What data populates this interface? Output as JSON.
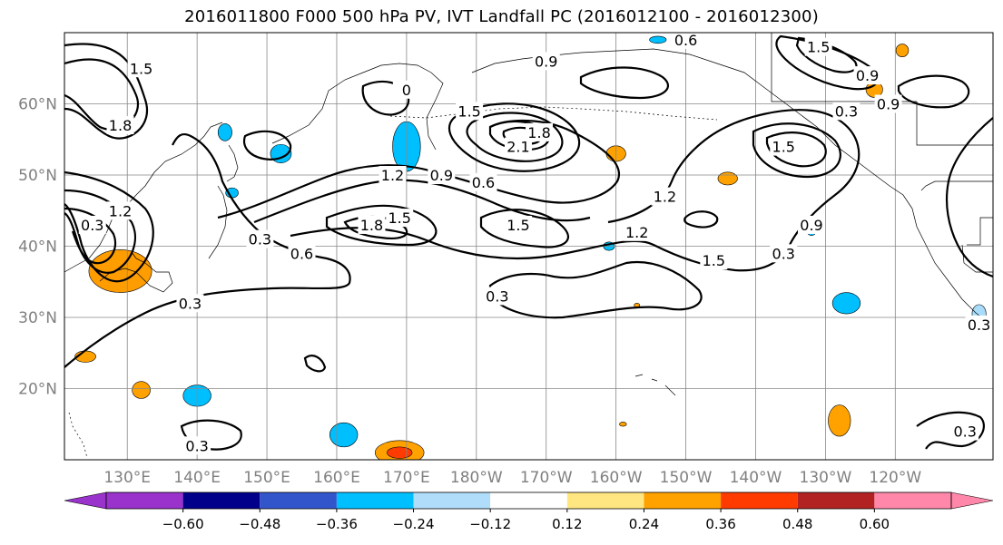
{
  "title": "2016011800 F000 500 hPa PV, IVT Landfall PC (2016012100 - 2016012300)",
  "map": {
    "lon_range": [
      121,
      254
    ],
    "lat_range": [
      10,
      70
    ],
    "lon_ticks": [
      "130°E",
      "140°E",
      "150°E",
      "160°E",
      "170°E",
      "180°W",
      "170°W",
      "160°W",
      "150°W",
      "140°W",
      "130°W",
      "120°W"
    ],
    "lat_ticks": [
      "20°N",
      "30°N",
      "40°N",
      "50°N",
      "60°N"
    ],
    "tick_label_color": "#808080",
    "grid": true,
    "contour_labels": [
      {
        "text": "1.5",
        "lon": 132,
        "lat": 65
      },
      {
        "text": "1.8",
        "lon": 129,
        "lat": 57
      },
      {
        "text": "1.2",
        "lon": 129,
        "lat": 45
      },
      {
        "text": "0.3",
        "lon": 125,
        "lat": 43
      },
      {
        "text": "0.3",
        "lon": 139,
        "lat": 32
      },
      {
        "text": "0.3",
        "lon": 149,
        "lat": 41
      },
      {
        "text": "0.6",
        "lon": 155,
        "lat": 39
      },
      {
        "text": "1.2",
        "lon": 168,
        "lat": 50
      },
      {
        "text": "0.9",
        "lon": 175,
        "lat": 50
      },
      {
        "text": "0.6",
        "lon": 181,
        "lat": 49
      },
      {
        "text": "1.8",
        "lon": 165,
        "lat": 43
      },
      {
        "text": "1.5",
        "lon": 169,
        "lat": 44
      },
      {
        "text": "1.5",
        "lon": 186,
        "lat": 43
      },
      {
        "text": "0",
        "lon": 170,
        "lat": 62
      },
      {
        "text": "1.5",
        "lon": 179,
        "lat": 59
      },
      {
        "text": "2.1",
        "lon": 186,
        "lat": 54
      },
      {
        "text": "1.8",
        "lon": 189,
        "lat": 56
      },
      {
        "text": "0.9",
        "lon": 190,
        "lat": 66
      },
      {
        "text": "0.6",
        "lon": 210,
        "lat": 69
      },
      {
        "text": "1.2",
        "lon": 207,
        "lat": 47
      },
      {
        "text": "1.2",
        "lon": 203,
        "lat": 42
      },
      {
        "text": "1.5",
        "lon": 214,
        "lat": 38
      },
      {
        "text": "1.5",
        "lon": 224,
        "lat": 54
      },
      {
        "text": "0.3",
        "lon": 224,
        "lat": 39
      },
      {
        "text": "0.9",
        "lon": 228,
        "lat": 43
      },
      {
        "text": "0.3",
        "lon": 233,
        "lat": 59
      },
      {
        "text": "0.9",
        "lon": 236,
        "lat": 64
      },
      {
        "text": "1.5",
        "lon": 229,
        "lat": 68
      },
      {
        "text": "0.9",
        "lon": 239,
        "lat": 60
      },
      {
        "text": "0.3",
        "lon": 183,
        "lat": 33
      },
      {
        "text": "0.3",
        "lon": 140,
        "lat": 12
      },
      {
        "text": "0.3",
        "lon": 250,
        "lat": 14
      },
      {
        "text": "0.3",
        "lon": 252,
        "lat": 29
      }
    ],
    "shaded_blobs": [
      {
        "lon": 129,
        "lat": 36,
        "rx": 3.5,
        "ry": 2,
        "color": "#ff3b00"
      },
      {
        "lon": 129,
        "lat": 36.5,
        "rx": 4.5,
        "ry": 3,
        "color": "#ff9d00"
      },
      {
        "lon": 132,
        "lat": 19.8,
        "rx": 1.3,
        "ry": 1.2,
        "color": "#ffa200"
      },
      {
        "lon": 124,
        "lat": 24.5,
        "rx": 1.5,
        "ry": 0.8,
        "color": "#ffa200"
      },
      {
        "lon": 140,
        "lat": 19,
        "rx": 2,
        "ry": 1.5,
        "color": "#00bfff"
      },
      {
        "lon": 161,
        "lat": 13.5,
        "rx": 2,
        "ry": 1.7,
        "color": "#00bfff"
      },
      {
        "lon": 169,
        "lat": 11,
        "rx": 3.5,
        "ry": 1.7,
        "color": "#ffa200"
      },
      {
        "lon": 169,
        "lat": 11,
        "rx": 1.8,
        "ry": 0.8,
        "color": "#ff3b00"
      },
      {
        "lon": 170,
        "lat": 54,
        "rx": 2,
        "ry": 3.5,
        "color": "#00bfff"
      },
      {
        "lon": 152,
        "lat": 53,
        "rx": 1.5,
        "ry": 1.3,
        "color": "#00bfff"
      },
      {
        "lon": 144,
        "lat": 56,
        "rx": 1,
        "ry": 1.2,
        "color": "#00bfff"
      },
      {
        "lon": 145,
        "lat": 47.5,
        "rx": 0.9,
        "ry": 0.7,
        "color": "#00bfff"
      },
      {
        "lon": 200,
        "lat": 53,
        "rx": 1.4,
        "ry": 1.1,
        "color": "#ffa200"
      },
      {
        "lon": 216,
        "lat": 49.5,
        "rx": 1.4,
        "ry": 0.9,
        "color": "#ffa200"
      },
      {
        "lon": 237,
        "lat": 62,
        "rx": 1.2,
        "ry": 1.1,
        "color": "#ffa200"
      },
      {
        "lon": 241,
        "lat": 67.5,
        "rx": 0.9,
        "ry": 0.9,
        "color": "#ffa200"
      },
      {
        "lon": 233,
        "lat": 32,
        "rx": 2,
        "ry": 1.5,
        "color": "#00bfff"
      },
      {
        "lon": 232,
        "lat": 15.5,
        "rx": 1.6,
        "ry": 2.2,
        "color": "#ffa200"
      },
      {
        "lon": 199,
        "lat": 40,
        "rx": 0.8,
        "ry": 0.6,
        "color": "#00bfff"
      },
      {
        "lon": 206,
        "lat": 69,
        "rx": 1.2,
        "ry": 0.5,
        "color": "#00bfff"
      },
      {
        "lon": 201,
        "lat": 15,
        "rx": 0.5,
        "ry": 0.3,
        "color": "#ffa200"
      },
      {
        "lon": 203,
        "lat": 31.7,
        "rx": 0.4,
        "ry": 0.3,
        "color": "#ffa200"
      },
      {
        "lon": 228,
        "lat": 42,
        "rx": 0.6,
        "ry": 0.5,
        "color": "#00bfff"
      },
      {
        "lon": 252,
        "lat": 30.5,
        "rx": 1,
        "ry": 1.3,
        "color": "#a8dcfa"
      }
    ]
  },
  "colorbar": {
    "bounds": [
      -0.72,
      -0.6,
      -0.48,
      -0.36,
      -0.24,
      -0.12,
      0.12,
      0.24,
      0.36,
      0.48,
      0.6,
      0.72
    ],
    "tick_labels": [
      "−0.60",
      "−0.48",
      "−0.36",
      "−0.24",
      "−0.12",
      "0.12",
      "0.24",
      "0.36",
      "0.48",
      "0.60"
    ],
    "under_color": "#9933cc",
    "over_color": "#ff88aa",
    "colors": [
      "#9933cc",
      "#00008b",
      "#3355cc",
      "#00bfff",
      "#b0ddfa",
      "#ffffff",
      "#ffe680",
      "#ffa200",
      "#ff3b00",
      "#b22222",
      "#ff88aa"
    ]
  }
}
